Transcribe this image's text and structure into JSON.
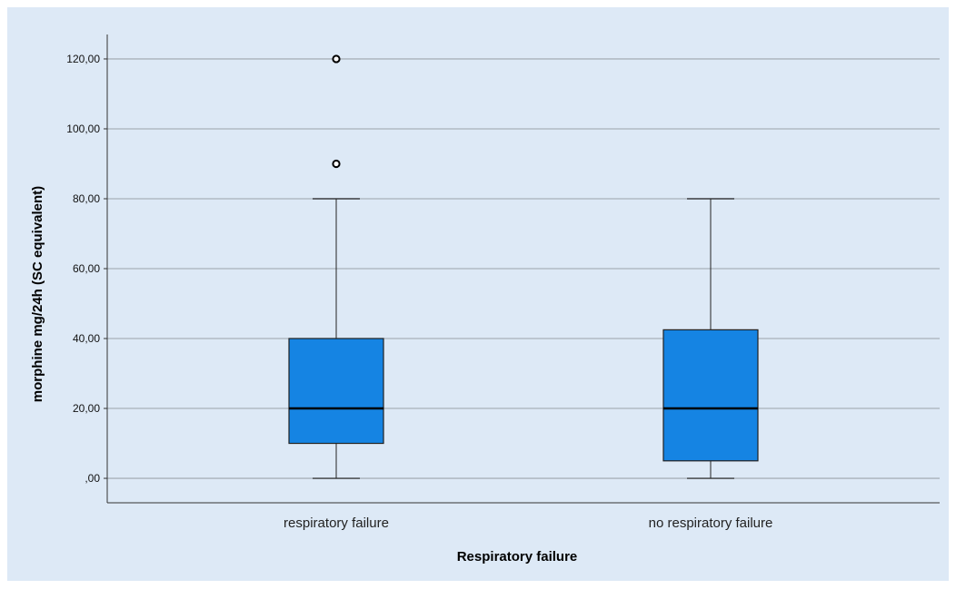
{
  "chart_data": {
    "type": "boxplot",
    "xlabel": "Respiratory failure",
    "ylabel": "morphine mg/24h (SC equivalent)",
    "ylim": [
      -7,
      127
    ],
    "yticks": [
      0,
      20,
      40,
      60,
      80,
      100,
      120
    ],
    "ytick_labels": [
      ",00",
      "20,00",
      "40,00",
      "60,00",
      "80,00",
      "100,00",
      "120,00"
    ],
    "grid": true,
    "box_color": "#1584e3",
    "background_color": "#dde9f6",
    "categories": [
      "respiratory failure",
      "no respiratory failure"
    ],
    "boxes": [
      {
        "category": "respiratory failure",
        "whisker_low": 0,
        "q1": 10,
        "median": 20,
        "q3": 40,
        "whisker_high": 80,
        "outliers": [
          90,
          120
        ]
      },
      {
        "category": "no respiratory failure",
        "whisker_low": 0,
        "q1": 5,
        "median": 20,
        "q3": 42.5,
        "whisker_high": 80,
        "outliers": []
      }
    ]
  }
}
